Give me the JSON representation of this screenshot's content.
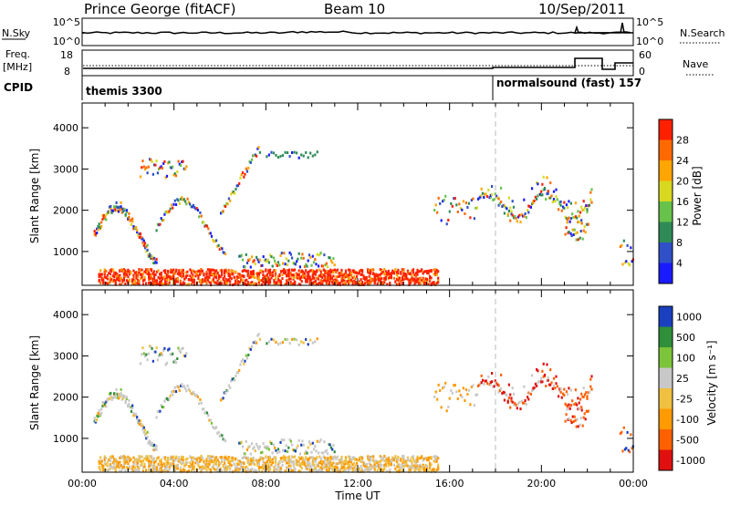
{
  "header": {
    "station": "Prince George (fitACF)",
    "beam": "Beam 10",
    "date": "10/Sep/2011"
  },
  "noise_panel": {
    "left_label": "N.Sky",
    "right_label": "N.Search",
    "left_ticks": [
      "10^5",
      "10^0"
    ],
    "right_ticks": [
      "10^5",
      "10^0"
    ]
  },
  "freq_panel": {
    "left_label_1": "Freq.",
    "left_label_2": "[MHz]",
    "right_label": "Nave",
    "left_ticks": [
      "18",
      "8"
    ],
    "right_ticks": [
      "60",
      "0"
    ]
  },
  "cpid_panel": {
    "label": "CPID",
    "segment_1": "themis 3300",
    "segment_2": "normalsound (fast) 157"
  },
  "x_axis": {
    "label": "Time UT",
    "ticks": [
      "00:00",
      "04:00",
      "08:00",
      "12:00",
      "16:00",
      "20:00",
      "00:00"
    ]
  },
  "chart_data": [
    {
      "type": "heatmap",
      "quantity": "power",
      "ylabel": "Slant Range [km]",
      "yticks": [
        1000,
        2000,
        3000,
        4000
      ],
      "ylim": [
        180,
        4600
      ],
      "xlim_hours": [
        0,
        24
      ],
      "colorbar_label": "Power [dB]",
      "colorbar_ticks": [
        "4",
        "8",
        "12",
        "16",
        "20",
        "24",
        "28"
      ],
      "colorbar_colors": [
        "#1a1aff",
        "#3050c8",
        "#2e8b57",
        "#66c24a",
        "#d8d820",
        "#ffa500",
        "#ff6a00",
        "#ff2000"
      ]
    },
    {
      "type": "heatmap",
      "quantity": "velocity",
      "ylabel": "Slant Range [km]",
      "yticks": [
        1000,
        2000,
        3000,
        4000
      ],
      "ylim": [
        180,
        4600
      ],
      "xlim_hours": [
        0,
        24
      ],
      "colorbar_label": "Velocity [m s⁻¹]",
      "colorbar_ticks": [
        "1000",
        "500",
        "100",
        "25",
        "-25",
        "-100",
        "-500",
        "-1000"
      ],
      "colorbar_colors": [
        "#1a40c0",
        "#2f8f3a",
        "#7cc43a",
        "#c8c8c8",
        "#f0c040",
        "#ff9a00",
        "#ff6000",
        "#e01010"
      ]
    }
  ],
  "colors": {
    "cpid_divider_hour": 18
  }
}
